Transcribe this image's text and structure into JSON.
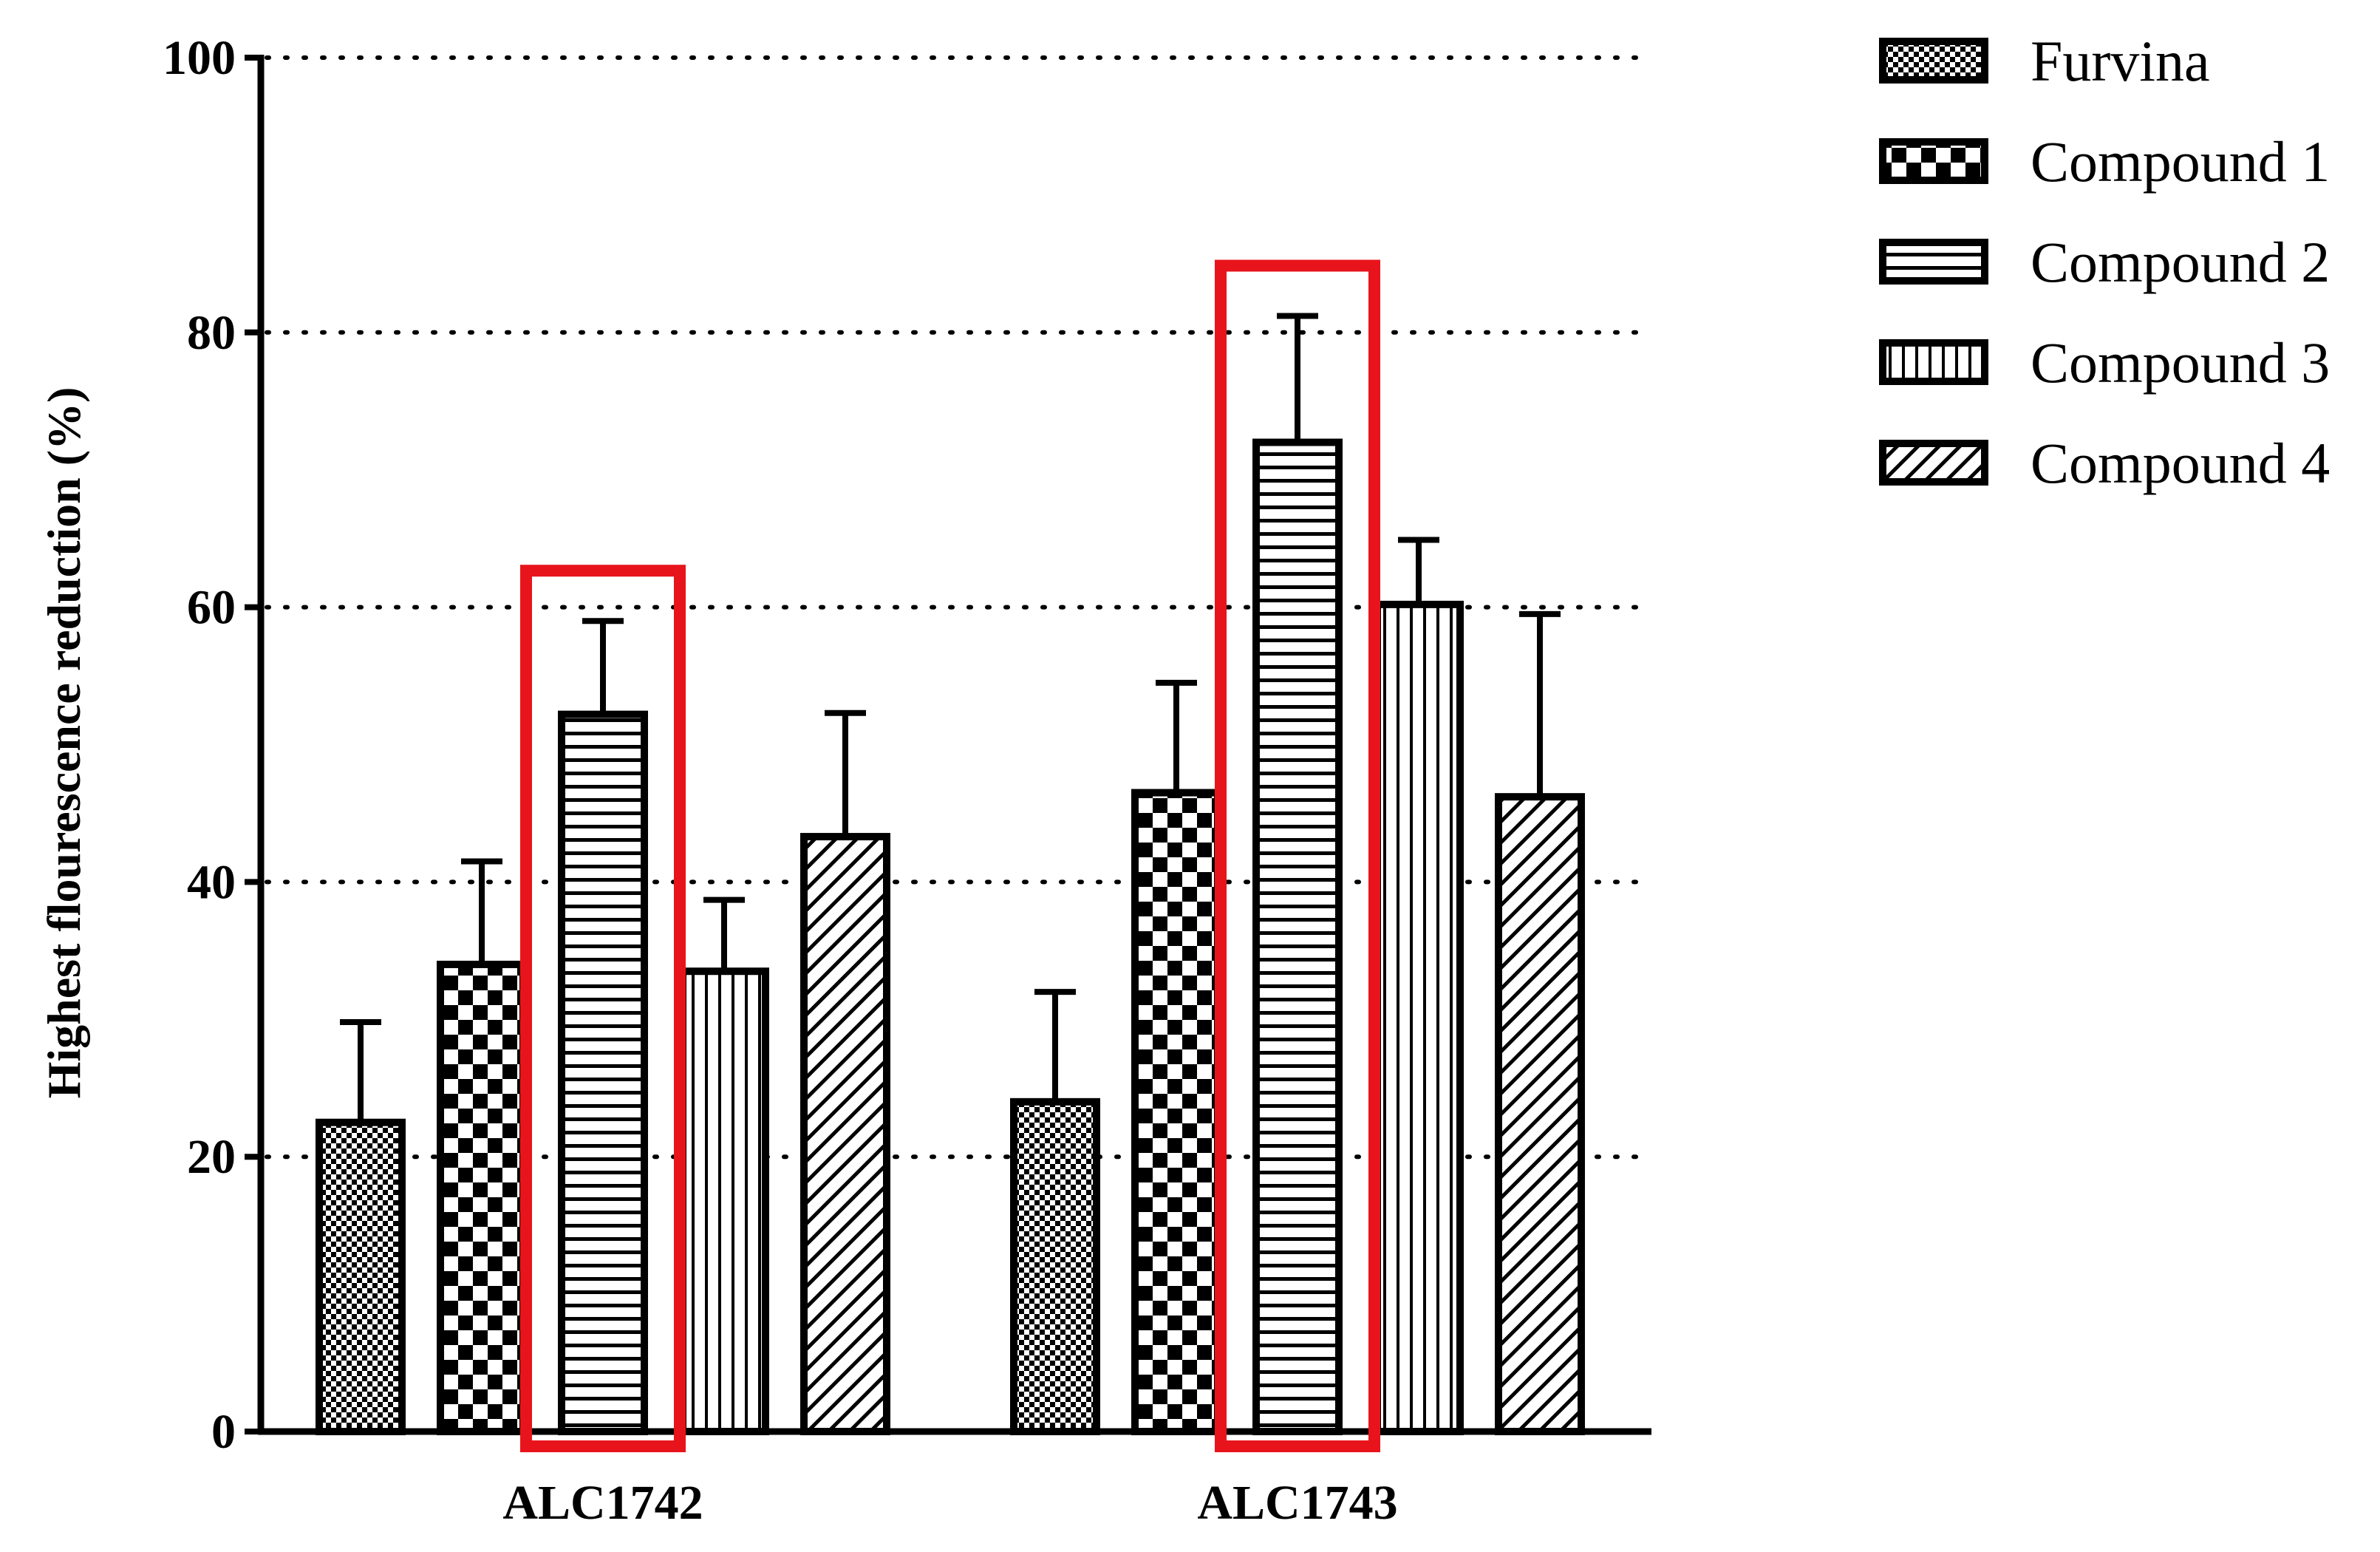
{
  "chart_data": {
    "type": "bar",
    "title": "",
    "xlabel": "",
    "ylabel": "Highest flourescence reduction (%)",
    "ylim": [
      0,
      100
    ],
    "yticks": [
      "0",
      "20",
      "40",
      "60",
      "80",
      "100"
    ],
    "grid": true,
    "legend_position": "top-right",
    "categories": [
      "ALC1742",
      "ALC1743"
    ],
    "series": [
      {
        "name": "Furvina",
        "pattern": "fine-checker",
        "values": [
          22.5,
          24.0
        ],
        "errors": [
          7.3,
          8.0
        ]
      },
      {
        "name": "Compound 1",
        "pattern": "coarse-checker",
        "values": [
          34.0,
          46.5
        ],
        "errors": [
          7.5,
          8.0
        ]
      },
      {
        "name": "Compound 2",
        "pattern": "horizontal-lines",
        "values": [
          52.2,
          72.0
        ],
        "errors": [
          6.8,
          9.2
        ]
      },
      {
        "name": "Compound 3",
        "pattern": "vertical-lines",
        "values": [
          33.5,
          60.2
        ],
        "errors": [
          5.2,
          4.7
        ]
      },
      {
        "name": "Compound 4",
        "pattern": "diagonal-lines",
        "values": [
          43.3,
          46.2
        ],
        "errors": [
          9.0,
          13.3
        ]
      }
    ],
    "highlight": {
      "series": "Compound 2",
      "color": "#e8141c"
    }
  }
}
